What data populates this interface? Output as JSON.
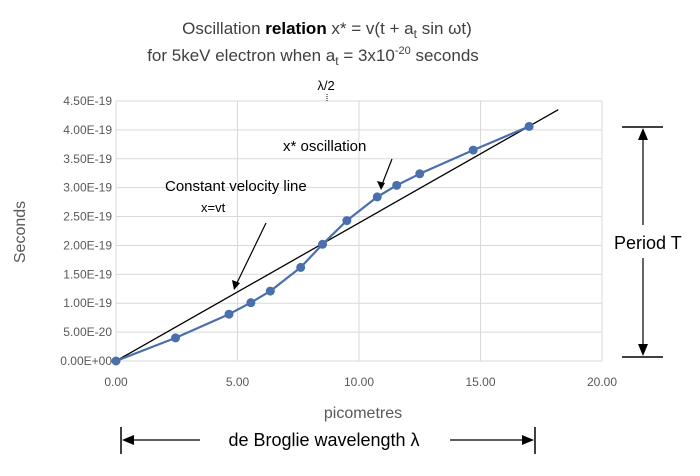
{
  "chart_data": {
    "type": "line",
    "title_line1_prefix": "Oscillation ",
    "title_line1_bold": "relation",
    "title_line1_formula": "  x* = v(t + a",
    "title_line1_sub": "t",
    "title_line1_end": " sin ωt)",
    "title_line2_prefix": "for 5keV electron when a",
    "title_line2_sub": "t",
    "title_line2_mid": " = 3x10",
    "title_line2_sup": "-20",
    "title_line2_end": " seconds",
    "xlabel": "picometres",
    "ylabel": "Seconds",
    "xlim": [
      0,
      20
    ],
    "ylim": [
      0,
      4.5e-19
    ],
    "x_ticks": [
      "0.00",
      "5.00",
      "10.00",
      "15.00",
      "20.00"
    ],
    "y_ticks": [
      "0.00E+00",
      "5.00E-20",
      "1.00E-19",
      "1.50E-19",
      "2.00E-19",
      "2.50E-19",
      "3.00E-19",
      "3.50E-19",
      "4.00E-19",
      "4.50E-19"
    ],
    "grid": true,
    "series": [
      {
        "color": "#4a6fad",
        "x": [
          0.0,
          2.45,
          4.65,
          5.55,
          6.35,
          7.6,
          8.5,
          9.5,
          10.75,
          11.55,
          12.5,
          14.7,
          17.0
        ],
        "y": [
          0.0,
          4e-20,
          8.1e-20,
          1.01e-19,
          1.21e-19,
          1.62e-19,
          2.02e-19,
          2.43e-19,
          2.84e-19,
          3.04e-19,
          3.24e-19,
          3.65e-19,
          4.06e-19
        ]
      },
      {
        "color": "#000000",
        "x": [
          0.0,
          18.2
        ],
        "y": [
          0.0,
          4.35e-19
        ]
      }
    ],
    "annotations": {
      "half_wavelength": "λ/2",
      "x_star": "x* oscillation",
      "constant_velocity": "Constant velocity line",
      "x_equals": "x=vt",
      "period": "Period T",
      "wavelength": "de Broglie wavelength λ"
    }
  }
}
